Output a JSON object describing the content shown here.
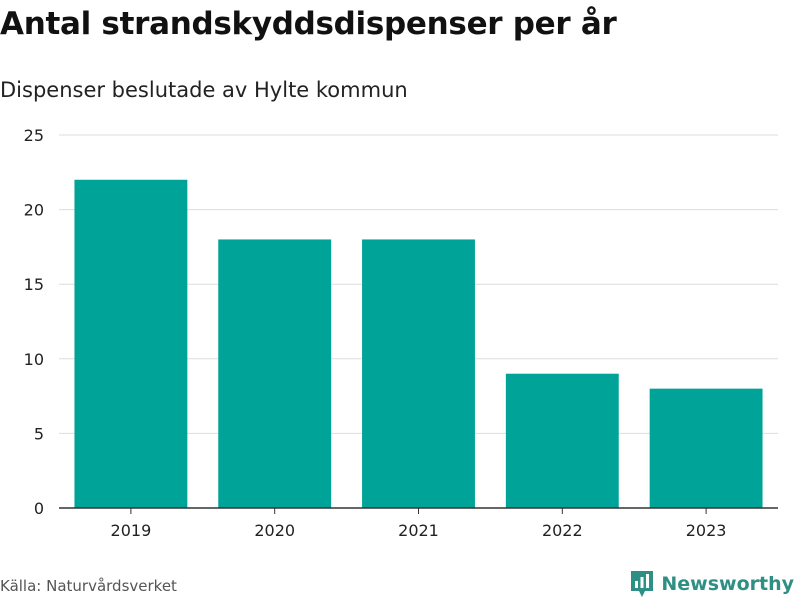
{
  "header": {
    "title": "Antal strandskyddsdispenser per år",
    "subtitle": "Dispenser beslutade av Hylte kommun"
  },
  "footer": {
    "source": "Källa: Naturvårdsverket",
    "brand": "Newsworthy"
  },
  "colors": {
    "bar": "#00a398",
    "grid": "#dddddd",
    "axis": "#333333",
    "brand": "#2e8f84"
  },
  "chart_data": {
    "type": "bar",
    "categories": [
      "2019",
      "2020",
      "2021",
      "2022",
      "2023"
    ],
    "values": [
      22,
      18,
      18,
      9,
      8
    ],
    "ylim": [
      0,
      25
    ],
    "yticks": [
      0,
      5,
      10,
      15,
      20,
      25
    ],
    "grid": true,
    "legend": "none"
  }
}
